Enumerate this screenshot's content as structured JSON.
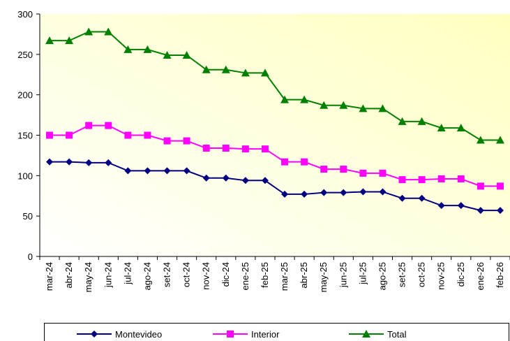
{
  "chart_data": {
    "type": "line",
    "categories": [
      "mar-24",
      "abr-24",
      "may-24",
      "jun-24",
      "jul-24",
      "ago-24",
      "set-24",
      "oct-24",
      "nov-24",
      "dic-24",
      "ene-25",
      "feb-25",
      "mar-25",
      "abr-25",
      "may-25",
      "jun-25",
      "jul-25",
      "ago-25",
      "set-25",
      "oct-25",
      "nov-25",
      "dic-25",
      "ene-26",
      "feb-26"
    ],
    "series": [
      {
        "name": "Montevideo",
        "color": "#000080",
        "marker": "diamond",
        "values": [
          117,
          117,
          116,
          116,
          106,
          106,
          106,
          106,
          97,
          97,
          94,
          94,
          77,
          77,
          79,
          79,
          80,
          80,
          72,
          72,
          63,
          63,
          57,
          57
        ]
      },
      {
        "name": "Interior",
        "color": "#ff00ff",
        "marker": "square",
        "values": [
          150,
          150,
          162,
          162,
          150,
          150,
          143,
          143,
          134,
          134,
          133,
          133,
          117,
          117,
          108,
          108,
          103,
          103,
          95,
          95,
          96,
          96,
          87,
          87
        ]
      },
      {
        "name": "Total",
        "color": "#008000",
        "marker": "triangle",
        "values": [
          267,
          267,
          278,
          278,
          256,
          256,
          249,
          249,
          231,
          231,
          227,
          227,
          194,
          194,
          187,
          187,
          183,
          183,
          167,
          167,
          159,
          159,
          144,
          144
        ]
      }
    ],
    "ylim": [
      0,
      300
    ],
    "yticks": [
      0,
      50,
      100,
      150,
      200,
      250,
      300
    ],
    "grid": false,
    "legend": "bottom"
  }
}
